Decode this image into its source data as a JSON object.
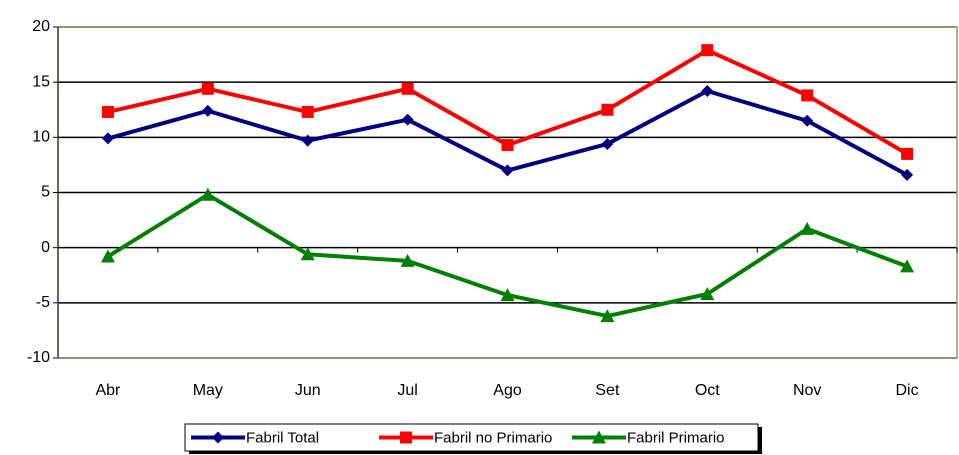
{
  "chart_data": {
    "type": "line",
    "categories": [
      "Abr",
      "May",
      "Jun",
      "Jul",
      "Ago",
      "Set",
      "Oct",
      "Nov",
      "Dic"
    ],
    "series": [
      {
        "name": "Fabril Total",
        "color": "#000080",
        "marker": "diamond",
        "values": [
          9.9,
          12.4,
          9.7,
          11.6,
          7.0,
          9.4,
          14.2,
          11.5,
          6.6
        ]
      },
      {
        "name": "Fabril no Primario",
        "color": "#ff0000",
        "marker": "square",
        "values": [
          12.3,
          14.4,
          12.3,
          14.4,
          9.3,
          12.5,
          17.9,
          13.8,
          8.5
        ]
      },
      {
        "name": "Fabril Primario",
        "color": "#008000",
        "marker": "triangle",
        "values": [
          -0.8,
          4.8,
          -0.6,
          -1.2,
          -4.3,
          -6.2,
          -4.2,
          1.7,
          -1.7
        ]
      }
    ],
    "ylim": [
      -10,
      20
    ],
    "yticks": [
      -10,
      -5,
      0,
      5,
      10,
      15,
      20
    ],
    "grid": true,
    "legend": "bottom"
  }
}
